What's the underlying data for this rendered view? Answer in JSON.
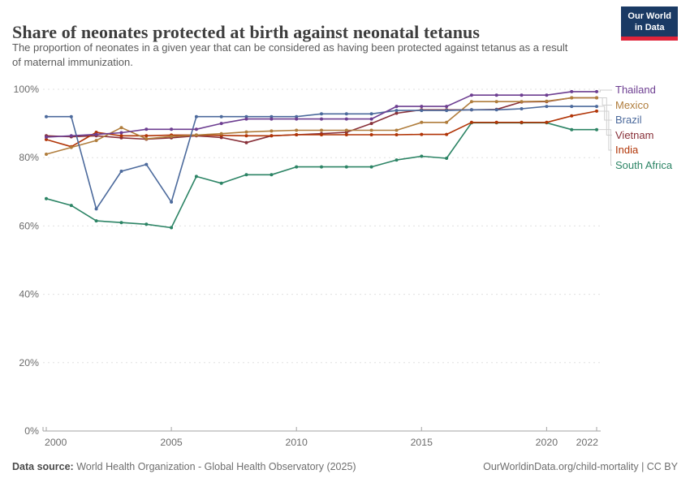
{
  "header": {
    "title": "Share of neonates protected at birth against neonatal tetanus",
    "subtitle": "The proportion of neonates in a given year that can be considered as having been protected against tetanus as a result of maternal immunization.",
    "logo": {
      "line1": "Our World",
      "line2": "in Data",
      "bg_color": "#1a3a64",
      "accent_color": "#e0243a"
    }
  },
  "chart_data": {
    "type": "line",
    "title": "Share of neonates protected at birth against neonatal tetanus",
    "xlabel": "",
    "ylabel": "",
    "ylim": [
      0,
      100
    ],
    "grid": true,
    "legend_position": "right",
    "x": [
      2000,
      2001,
      2002,
      2003,
      2004,
      2005,
      2006,
      2007,
      2008,
      2009,
      2010,
      2011,
      2012,
      2013,
      2014,
      2015,
      2016,
      2017,
      2018,
      2019,
      2020,
      2021,
      2022
    ],
    "xticks": [
      "2000",
      "2005",
      "2010",
      "2015",
      "2020",
      "2022"
    ],
    "xtick_years": [
      2000,
      2005,
      2010,
      2015,
      2020,
      2022
    ],
    "ytick_values": [
      0,
      20,
      40,
      60,
      80,
      100
    ],
    "ytick_labels": [
      "0%",
      "20%",
      "40%",
      "60%",
      "80%",
      "100%"
    ],
    "series": [
      {
        "name": "Thailand",
        "color": "#6D3E91",
        "values": [
          86,
          86.4,
          86.8,
          87.3,
          88.3,
          88.3,
          88.3,
          90,
          91.3,
          91.3,
          91.3,
          91.3,
          91.3,
          91.3,
          95,
          95,
          95,
          98.3,
          98.3,
          98.3,
          98.3,
          99.3,
          99.3
        ]
      },
      {
        "name": "Mexico",
        "color": "#B07D3C",
        "values": [
          81,
          83,
          85,
          88.8,
          85.5,
          86.2,
          86.6,
          87,
          87.5,
          87.8,
          88,
          88,
          88,
          88,
          88,
          90.3,
          90.3,
          96.4,
          96.4,
          96.4,
          96.5,
          97.5,
          97.5
        ]
      },
      {
        "name": "Brazil",
        "color": "#4C6A9C",
        "values": [
          92,
          92,
          65,
          76,
          78,
          67,
          92,
          92,
          92,
          92,
          92,
          92.8,
          92.8,
          92.8,
          93.8,
          93.8,
          93.8,
          94,
          94,
          94.3,
          95,
          95,
          95
        ]
      },
      {
        "name": "Vietnam",
        "color": "#883039",
        "values": [
          86.4,
          86.1,
          86.4,
          85.8,
          85.4,
          85.8,
          86.4,
          85.9,
          84.4,
          86.4,
          86.7,
          87,
          87.4,
          90,
          93,
          94,
          94,
          94,
          94.1,
          96.3,
          96.4,
          97.5,
          97.5
        ]
      },
      {
        "name": "India",
        "color": "#B13507",
        "values": [
          85.3,
          83.2,
          87.4,
          86.4,
          86.4,
          86.6,
          86.6,
          86.5,
          86.4,
          86.4,
          86.7,
          86.7,
          86.7,
          86.7,
          86.7,
          86.8,
          86.8,
          90.3,
          90.3,
          90.3,
          90.3,
          92.2,
          93.6
        ]
      },
      {
        "name": "South Africa",
        "color": "#2C8465",
        "values": [
          68,
          66,
          61.5,
          61,
          60.5,
          59.5,
          74.5,
          72.5,
          75,
          75,
          77.3,
          77.3,
          77.3,
          77.3,
          79.3,
          80.4,
          79.8,
          90.2,
          90.2,
          90.2,
          90.2,
          88.2,
          88.2
        ]
      }
    ]
  },
  "footer": {
    "source_label": "Data source:",
    "source_text": " World Health Organization - Global Health Observatory (2025)",
    "link_text": "OurWorldinData.org/child-mortality | CC BY"
  }
}
